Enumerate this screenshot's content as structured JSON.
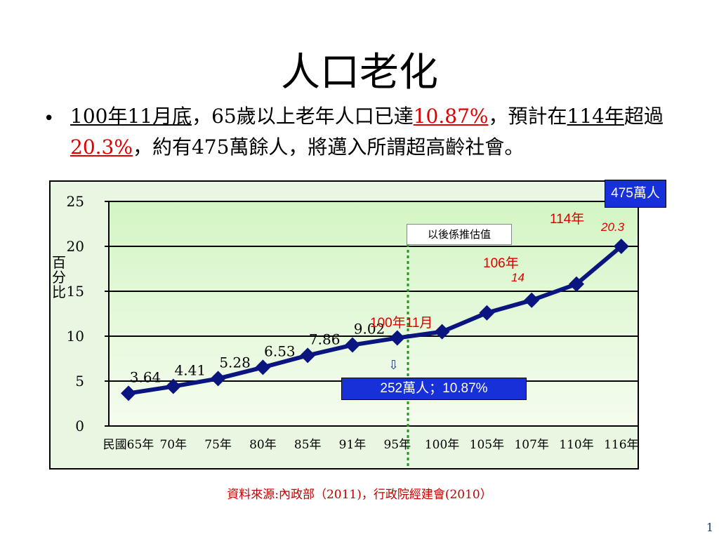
{
  "slide": {
    "title": "人口老化",
    "bullet": {
      "part1": "100年11月底",
      "part2": "，65歲以上老年人口已達",
      "part3": "10.87%",
      "part4": "，預計在",
      "part5": "114年",
      "part6": "超過",
      "part7": "20.3%",
      "part8": "，約有475萬餘人，將邁入所謂超高齡社會。"
    },
    "source": "資料來源:內政部（2011)，行政院經建會(2010）",
    "page_number": "1"
  },
  "chart_data": {
    "type": "line",
    "ylabel": "百分比",
    "ylim": [
      0,
      25
    ],
    "yticks": [
      0,
      5,
      10,
      15,
      20,
      25
    ],
    "categories": [
      "民國65年",
      "70年",
      "75年",
      "80年",
      "85年",
      "91年",
      "95年",
      "100年",
      "105年",
      "107年",
      "110年",
      "116年"
    ],
    "series": [
      {
        "values": [
          3.64,
          4.41,
          5.28,
          6.53,
          7.86,
          9.02,
          9.8,
          10.5,
          12.6,
          14.0,
          15.8,
          20.0
        ],
        "color": "#0a1580"
      }
    ],
    "data_labels": [
      "3.64",
      "4.41",
      "5.28",
      "6.53",
      "7.86",
      "9.02"
    ],
    "forecast_label": "以後係推估值",
    "annotations": {
      "a100_year": "100年11月",
      "a100_box": "252萬人；10.87%",
      "a106_year": "106年",
      "a106_value": "14",
      "a114_year": "114年",
      "a114_value": "20.3",
      "a_top_box": "475萬人"
    },
    "colors": {
      "plot_bg_top": "#d3f5c4",
      "plot_bg_bottom": "#f5fcef",
      "line": "#0a1580",
      "forecast_line": "#1a9c1a"
    }
  }
}
